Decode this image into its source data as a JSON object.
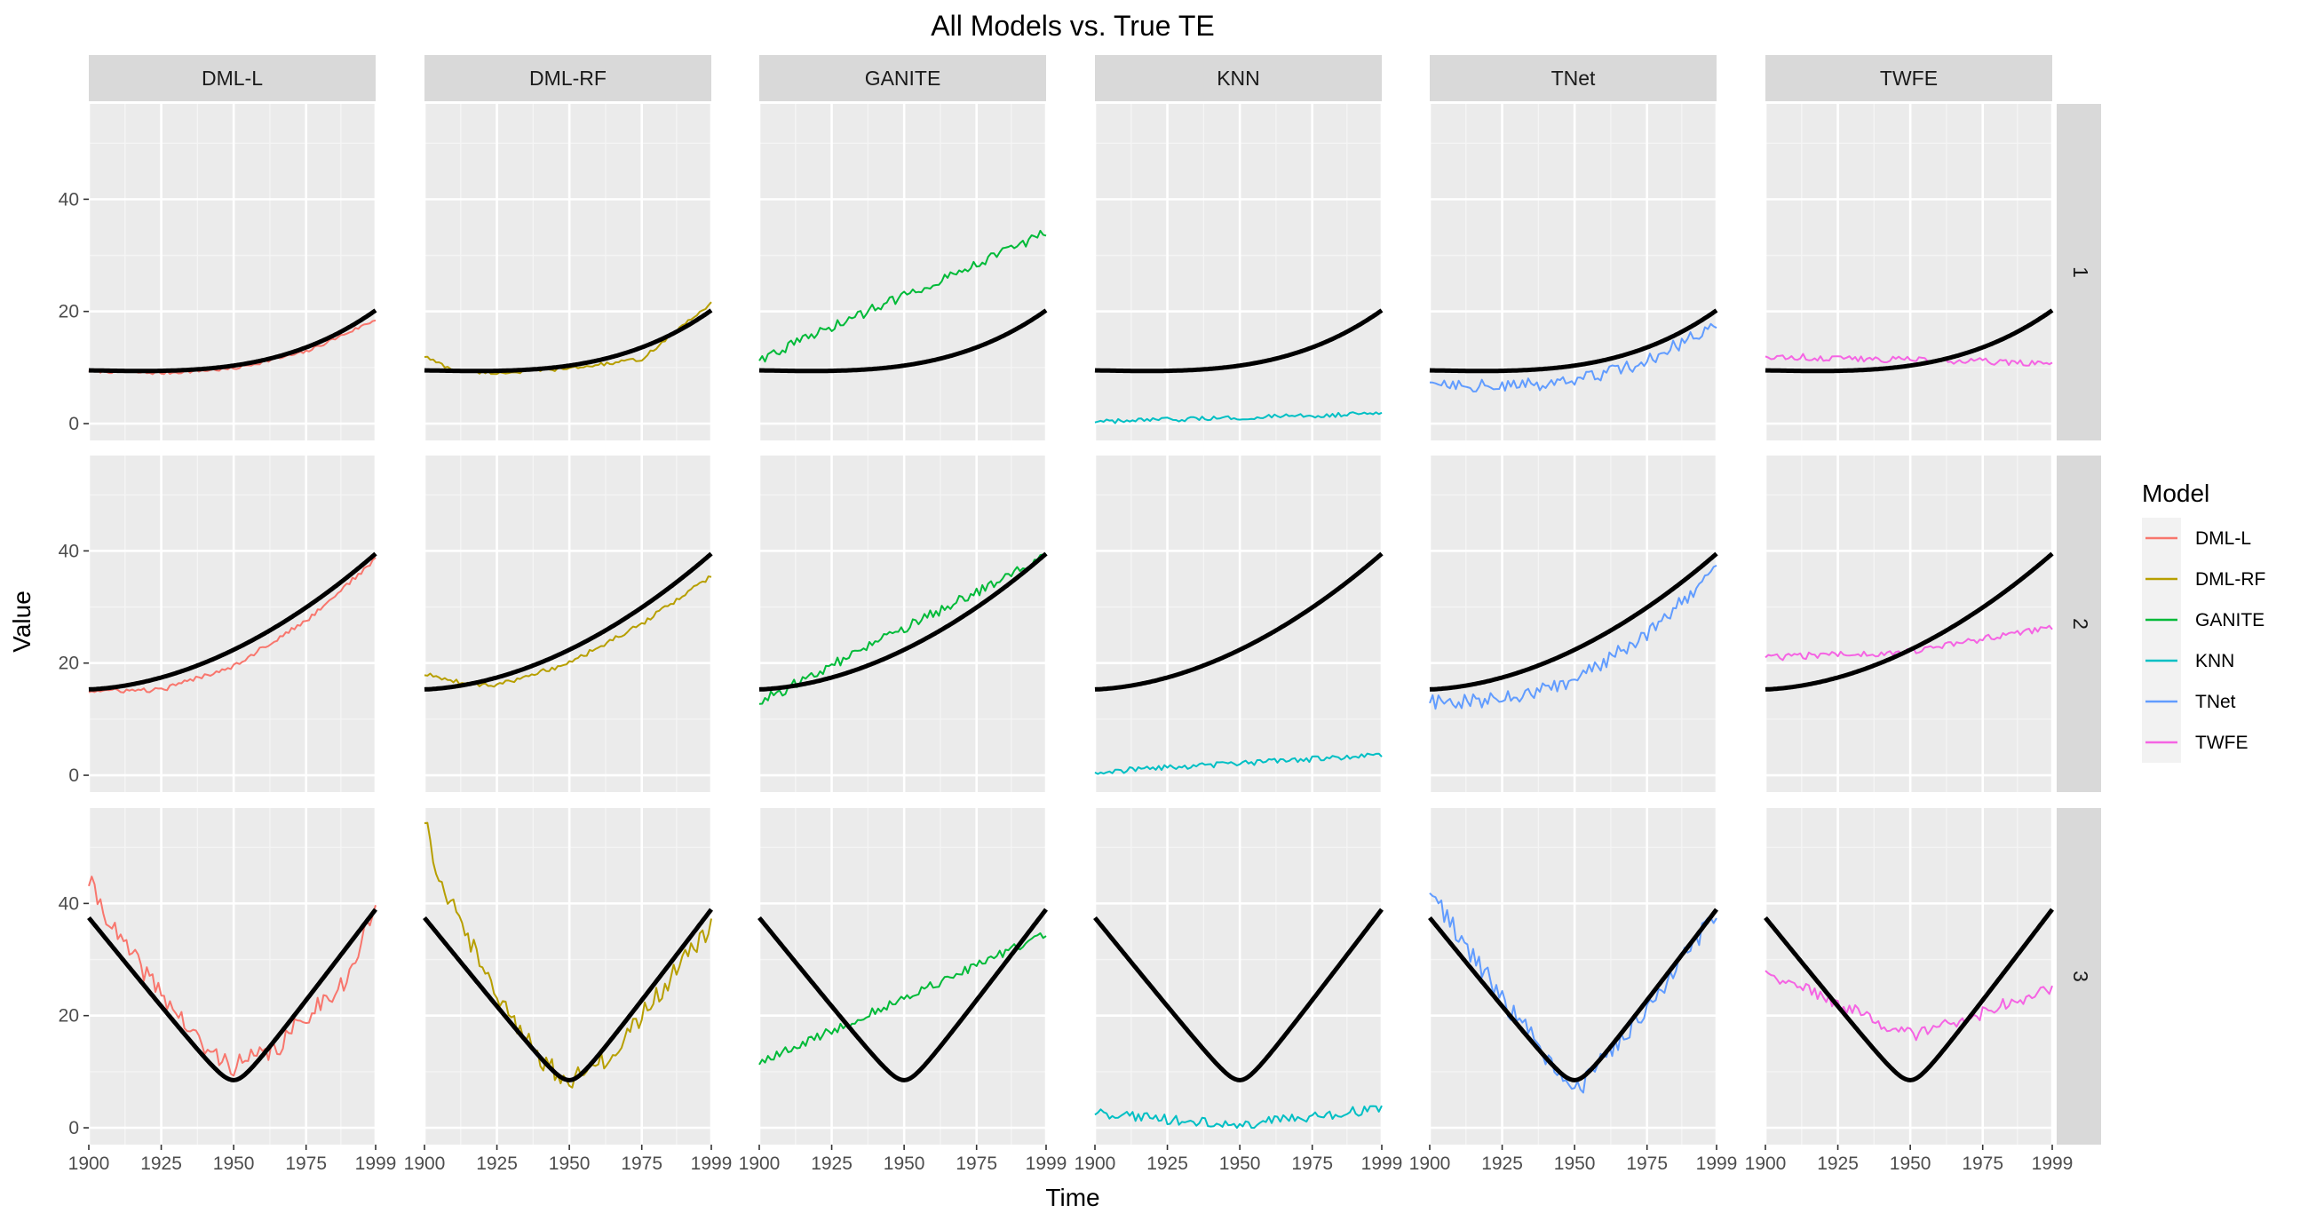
{
  "chart_data": {
    "type": "line",
    "title": "All Models vs. True TE",
    "xlabel": "Time",
    "ylabel": "Value",
    "xlim": [
      1900,
      1999
    ],
    "ylim": [
      -3,
      57
    ],
    "x_ticks": [
      1900,
      1925,
      1950,
      1975,
      1999
    ],
    "y_ticks": [
      0,
      20,
      40
    ],
    "columns": [
      "DML-L",
      "DML-RF",
      "GANITE",
      "KNN",
      "TNet",
      "TWFE"
    ],
    "rows": [
      "1",
      "2",
      "3"
    ],
    "grid": true,
    "legend": {
      "title": "Model",
      "position": "right",
      "entries": [
        {
          "name": "DML-L",
          "color": "#F8766D"
        },
        {
          "name": "DML-RF",
          "color": "#B79F00"
        },
        {
          "name": "GANITE",
          "color": "#00BA38"
        },
        {
          "name": "KNN",
          "color": "#00BFC4"
        },
        {
          "name": "TNet",
          "color": "#619CFF"
        },
        {
          "name": "TWFE",
          "color": "#F564E3"
        }
      ]
    },
    "true_te": {
      "color": "#000000",
      "x": [
        1900,
        1925,
        1950,
        1975,
        1999
      ],
      "rows": {
        "1": [
          9.5,
          9.4,
          10.0,
          12.5,
          20.2
        ],
        "2": [
          15.3,
          17.5,
          21.5,
          29.5,
          39.5
        ],
        "3": [
          40.3,
          24.0,
          8.5,
          24.0,
          41.8
        ]
      }
    },
    "series": [
      {
        "model": "DML-L",
        "row": "1",
        "x": [
          1900,
          1925,
          1950,
          1975,
          1999
        ],
        "values": [
          9.4,
          9.0,
          9.8,
          12.8,
          18.5
        ],
        "noise": 0.3
      },
      {
        "model": "DML-L",
        "row": "2",
        "x": [
          1900,
          1925,
          1950,
          1975,
          1999
        ],
        "values": [
          15.0,
          15.2,
          19.5,
          27.5,
          38.5
        ],
        "noise": 0.4
      },
      {
        "model": "DML-L",
        "row": "3",
        "x": [
          1900,
          1910,
          1925,
          1940,
          1950,
          1965,
          1975,
          1990,
          1999
        ],
        "values": [
          44.0,
          34.0,
          24.0,
          14.0,
          11.0,
          14.0,
          20.0,
          27.0,
          40.0
        ],
        "noise": 1.8
      },
      {
        "model": "DML-RF",
        "row": "1",
        "x": [
          1900,
          1910,
          1925,
          1950,
          1975,
          1999
        ],
        "values": [
          12.0,
          9.5,
          9.0,
          9.8,
          11.5,
          21.5
        ],
        "noise": 0.3
      },
      {
        "model": "DML-RF",
        "row": "2",
        "x": [
          1900,
          1915,
          1925,
          1950,
          1975,
          1999
        ],
        "values": [
          18.0,
          16.3,
          16.0,
          20.0,
          27.0,
          35.5
        ],
        "noise": 0.4
      },
      {
        "model": "DML-RF",
        "row": "3",
        "x": [
          1900,
          1905,
          1915,
          1925,
          1940,
          1950,
          1965,
          1975,
          1990,
          1999
        ],
        "values": [
          55.0,
          45.0,
          34.0,
          24.0,
          12.0,
          8.5,
          13.0,
          20.0,
          30.0,
          36.0
        ],
        "noise": 1.8
      },
      {
        "model": "GANITE",
        "row": "1",
        "x": [
          1900,
          1999
        ],
        "values": [
          11.5,
          34.0
        ],
        "noise": 0.9
      },
      {
        "model": "GANITE",
        "row": "2",
        "x": [
          1900,
          1999
        ],
        "values": [
          13.0,
          39.0
        ],
        "noise": 0.9
      },
      {
        "model": "GANITE",
        "row": "3",
        "x": [
          1900,
          1999
        ],
        "values": [
          11.5,
          34.5
        ],
        "noise": 0.8
      },
      {
        "model": "KNN",
        "row": "1",
        "x": [
          1900,
          1999
        ],
        "values": [
          0.3,
          1.8
        ],
        "noise": 0.4
      },
      {
        "model": "KNN",
        "row": "2",
        "x": [
          1900,
          1999
        ],
        "values": [
          0.6,
          3.6
        ],
        "noise": 0.5
      },
      {
        "model": "KNN",
        "row": "3",
        "x": [
          1900,
          1950,
          1999
        ],
        "values": [
          2.5,
          0.5,
          3.5
        ],
        "noise": 0.9
      },
      {
        "model": "TNet",
        "row": "1",
        "x": [
          1900,
          1925,
          1950,
          1975,
          1999
        ],
        "values": [
          7.5,
          6.5,
          7.5,
          11.0,
          18.0
        ],
        "noise": 1.2
      },
      {
        "model": "TNet",
        "row": "2",
        "x": [
          1900,
          1925,
          1950,
          1975,
          1999
        ],
        "values": [
          13.0,
          13.5,
          17.0,
          25.0,
          37.0
        ],
        "noise": 1.3
      },
      {
        "model": "TNet",
        "row": "3",
        "x": [
          1900,
          1925,
          1950,
          1975,
          1999
        ],
        "values": [
          42.0,
          23.0,
          6.0,
          21.0,
          38.5
        ],
        "noise": 1.8
      },
      {
        "model": "TWFE",
        "row": "1",
        "x": [
          1900,
          1999
        ],
        "values": [
          12.0,
          10.8
        ],
        "noise": 0.6
      },
      {
        "model": "TWFE",
        "row": "2",
        "x": [
          1900,
          1950,
          1999
        ],
        "values": [
          21.0,
          22.0,
          26.5
        ],
        "noise": 0.6
      },
      {
        "model": "TWFE",
        "row": "3",
        "x": [
          1900,
          1925,
          1950,
          1975,
          1999
        ],
        "values": [
          28.0,
          22.0,
          16.5,
          20.5,
          25.0
        ],
        "noise": 1.2
      }
    ]
  }
}
